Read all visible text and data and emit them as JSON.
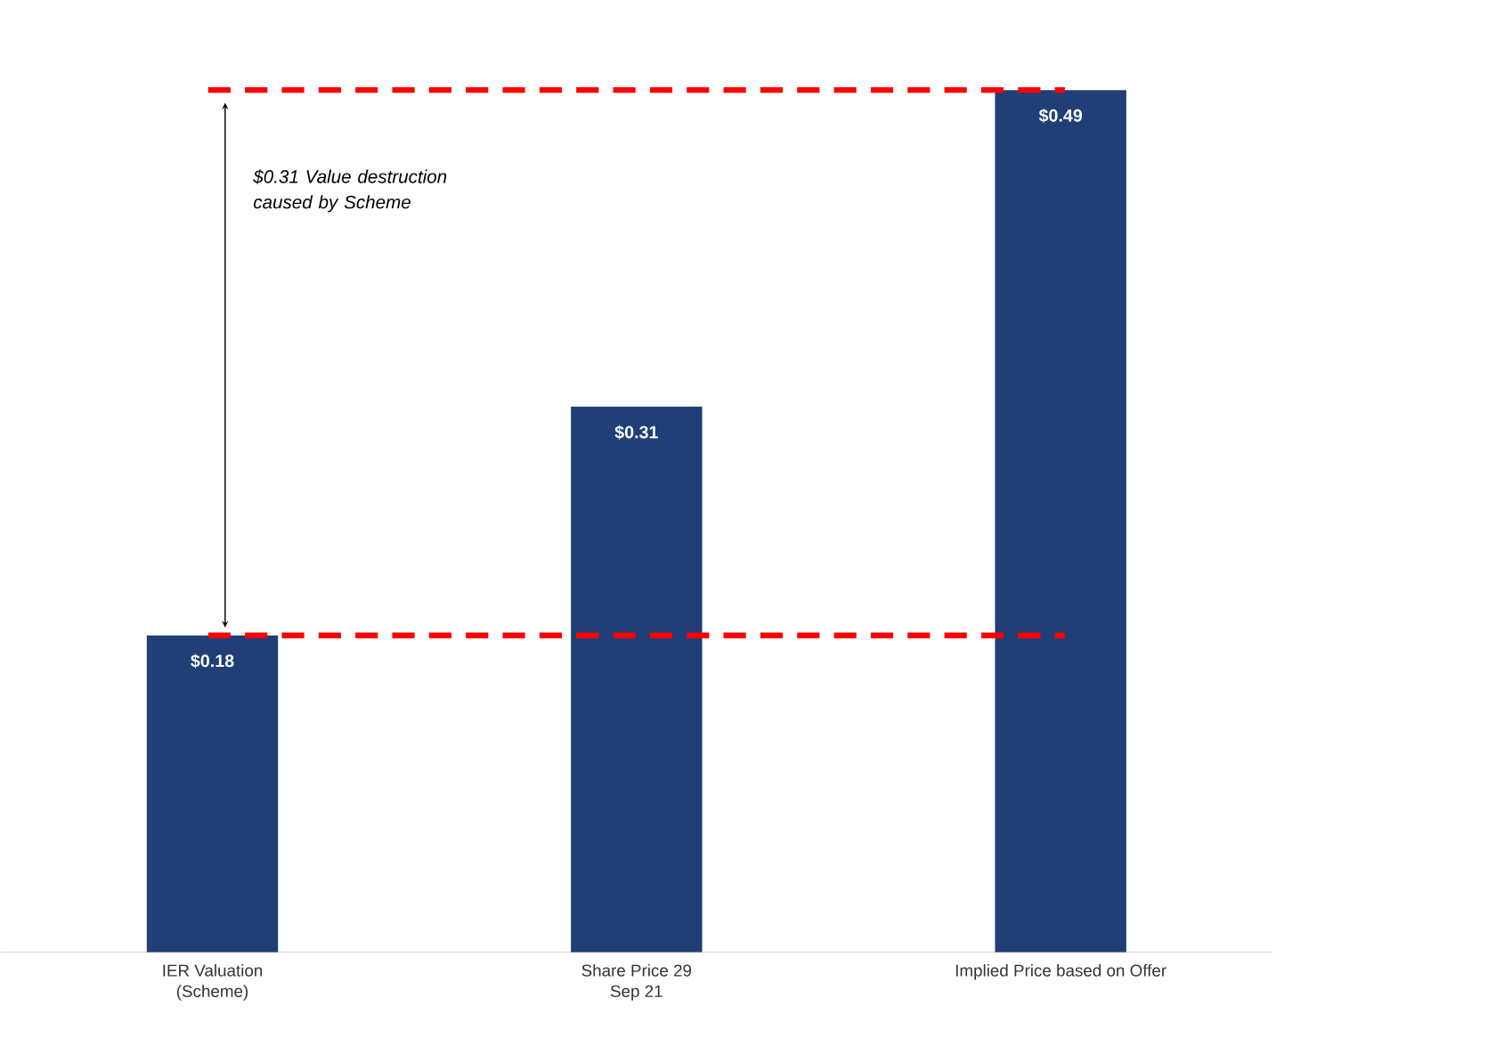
{
  "chart_data": {
    "type": "bar",
    "categories": [
      "IER Valuation (Scheme)",
      "Share Price 29 Sep 21",
      "Implied Price based on Offer"
    ],
    "values": [
      0.18,
      0.31,
      0.49
    ],
    "value_labels": [
      "$0.18",
      "$0.31",
      "$0.49"
    ],
    "color": "#1f3f76",
    "tick_labels": "x",
    "ref_lines": [
      {
        "axis": "y",
        "value": 0.18,
        "color": "#ff0000",
        "line_style": "dashed"
      },
      {
        "axis": "y",
        "value": 0.49,
        "color": "#ff0000",
        "line_style": "dashed"
      }
    ],
    "annotations": [
      "$0.31 Value destruction caused by Scheme"
    ]
  }
}
